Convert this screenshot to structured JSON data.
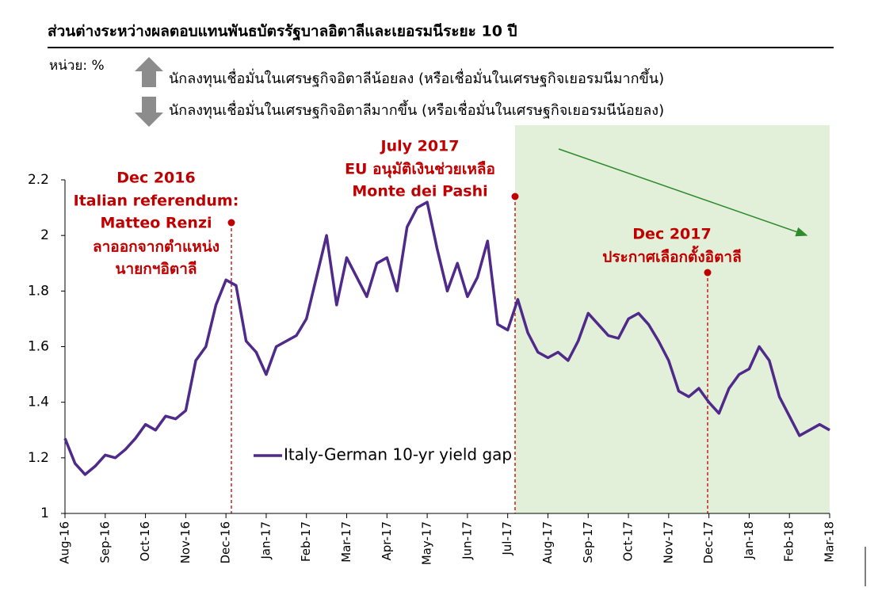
{
  "chart_data": {
    "type": "line",
    "title": "ส่วนต่างระหว่างผลตอบแทนพันธบัตรรัฐบาลอิตาลีและเยอรมนีระยะ 10 ปี",
    "unit_label": "หน่วย: %",
    "arrow_notes": [
      "นักลงทุนเชื่อมั่นในเศรษฐกิจอิตาลีน้อยลง (หรือเชื่อมั่นในเศรษฐกิจเยอรมนีมากขึ้น)",
      "นักลงทุนเชื่อมั่นในเศรษฐกิจอิตาลีมากขึ้น (หรือเชื่อมั่นในเศรษฐกิจเยอรมนีน้อยลง)"
    ],
    "annotations": [
      {
        "lines": [
          "Dec 2016",
          "Italian referendum:",
          "Matteo Renzi",
          "ลาออกจากตำแหน่ง",
          "นายกฯอิตาลี"
        ]
      },
      {
        "lines": [
          "July 2017",
          "EU อนุมัติเงินช่วยเหลือ",
          "Monte dei Pashi"
        ]
      },
      {
        "lines": [
          "Dec 2017",
          "ประกาศเลือกตั้งอิตาลี"
        ]
      }
    ],
    "categories": [
      "Aug-16",
      null,
      null,
      null,
      "Sep-16",
      null,
      null,
      null,
      "Oct-16",
      null,
      null,
      null,
      "Nov-16",
      null,
      null,
      null,
      "Dec-16",
      null,
      null,
      null,
      "Jan-17",
      null,
      null,
      null,
      "Feb-17",
      null,
      null,
      null,
      "Mar-17",
      null,
      null,
      null,
      "Apr-17",
      null,
      null,
      null,
      "May-17",
      null,
      null,
      null,
      "Jun-17",
      null,
      null,
      null,
      "Jul-17",
      null,
      null,
      null,
      "Aug-17",
      null,
      null,
      null,
      "Sep-17",
      null,
      null,
      null,
      "Oct-17",
      null,
      null,
      null,
      "Nov-17",
      null,
      null,
      null,
      "Dec-17",
      null,
      null,
      null,
      "Jan-18",
      null,
      null,
      null,
      "Feb-18",
      null,
      null,
      null,
      "Mar-18"
    ],
    "series": [
      {
        "name": "Italy-German 10-yr yield gap",
        "color": "#4f2a8a",
        "values": [
          1.27,
          1.18,
          1.14,
          1.17,
          1.21,
          1.2,
          1.23,
          1.27,
          1.32,
          1.3,
          1.35,
          1.34,
          1.37,
          1.55,
          1.6,
          1.75,
          1.84,
          1.82,
          1.62,
          1.58,
          1.5,
          1.6,
          1.62,
          1.64,
          1.7,
          1.85,
          2.0,
          1.75,
          1.92,
          1.85,
          1.78,
          1.9,
          1.92,
          1.8,
          2.03,
          2.1,
          2.12,
          1.95,
          1.8,
          1.9,
          1.78,
          1.85,
          1.98,
          1.68,
          1.66,
          1.77,
          1.65,
          1.58,
          1.56,
          1.58,
          1.55,
          1.62,
          1.72,
          1.68,
          1.64,
          1.63,
          1.7,
          1.72,
          1.68,
          1.62,
          1.55,
          1.44,
          1.42,
          1.45,
          1.4,
          1.36,
          1.45,
          1.5,
          1.52,
          1.6,
          1.55,
          1.42,
          1.35,
          1.28,
          1.3,
          1.32,
          1.3
        ]
      }
    ],
    "ylim": [
      1,
      2.2
    ],
    "yticks": [
      1,
      1.2,
      1.4,
      1.6,
      1.8,
      2,
      2.2
    ],
    "legend": "lower left",
    "grid": false
  }
}
